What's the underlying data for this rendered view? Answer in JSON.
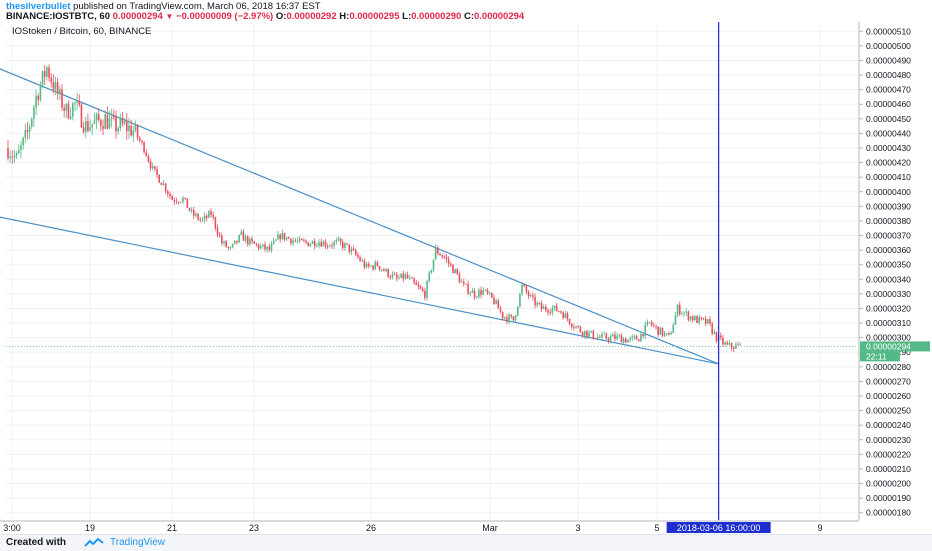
{
  "header": {
    "author": "thesilverbullet",
    "published_text": "published on TradingView.com, March 06, 2018 16:37 EST",
    "symbol": "BINANCE:IOSTBTC, 60",
    "last": "0.00000294",
    "change_icon": "triangle-down-icon",
    "change": "−0.00000009 (−2.97%)",
    "o_label": "O:",
    "o": "0.00000292",
    "h_label": "H:",
    "h": "0.00000295",
    "l_label": "L:",
    "l": "0.00000290",
    "c_label": "C:",
    "c": "0.00000294"
  },
  "legend": "IOStoken / Bitcoin, 60, BINANCE",
  "footer": {
    "created_with": "Created with",
    "brand": "TradingView",
    "logo_icon": "tradingview-logo-icon"
  },
  "colors": {
    "up": "#53b987",
    "down": "#eb4d5c",
    "trendline": "#4a90c8",
    "vline": "#2327d2",
    "price_badge": "#53b987",
    "date_badge": "#1f2ecf"
  },
  "chart_data": {
    "type": "candlestick",
    "ylim": [
      1.75e-06,
      5.15e-06
    ],
    "yticks": [
      "0.00000510",
      "0.00000500",
      "0.00000490",
      "0.00000480",
      "0.00000470",
      "0.00000460",
      "0.00000450",
      "0.00000440",
      "0.00000430",
      "0.00000420",
      "0.00000410",
      "0.00000400",
      "0.00000390",
      "0.00000380",
      "0.00000370",
      "0.00000360",
      "0.00000350",
      "0.00000340",
      "0.00000330",
      "0.00000320",
      "0.00000310",
      "0.00000300",
      "0.00000290",
      "0.00000280",
      "0.00000270",
      "0.00000260",
      "0.00000250",
      "0.00000240",
      "0.00000230",
      "0.00000220",
      "0.00000210",
      "0.00000200",
      "0.00000190",
      "0.00000180"
    ],
    "xticks": [
      "3:00",
      "19",
      "21",
      "23",
      "26",
      "Mar",
      "3",
      "5",
      "9"
    ],
    "last_price_label": "0.00000294",
    "countdown_label": "22:11",
    "crosshair_date": "2018-03-06 16:00:00",
    "close_path": [
      [
        0,
        4.3
      ],
      [
        4,
        4.22
      ],
      [
        9,
        4.4
      ],
      [
        13,
        4.65
      ],
      [
        18,
        4.85
      ],
      [
        22,
        4.7
      ],
      [
        27,
        4.55
      ],
      [
        31,
        4.6
      ],
      [
        36,
        4.45
      ],
      [
        40,
        4.47
      ],
      [
        45,
        4.5
      ],
      [
        49,
        4.45
      ],
      [
        54,
        4.45
      ],
      [
        58,
        4.42
      ],
      [
        63,
        4.3
      ],
      [
        67,
        4.15
      ],
      [
        72,
        4.05
      ],
      [
        76,
        3.95
      ],
      [
        81,
        3.95
      ],
      [
        85,
        3.85
      ],
      [
        90,
        3.8
      ],
      [
        94,
        3.85
      ],
      [
        99,
        3.65
      ],
      [
        103,
        3.6
      ],
      [
        108,
        3.7
      ],
      [
        112,
        3.65
      ],
      [
        117,
        3.62
      ],
      [
        121,
        3.6
      ],
      [
        126,
        3.7
      ],
      [
        130,
        3.68
      ],
      [
        135,
        3.65
      ],
      [
        139,
        3.65
      ],
      [
        144,
        3.66
      ],
      [
        148,
        3.64
      ],
      [
        153,
        3.65
      ],
      [
        157,
        3.62
      ],
      [
        162,
        3.55
      ],
      [
        166,
        3.48
      ],
      [
        171,
        3.5
      ],
      [
        175,
        3.45
      ],
      [
        180,
        3.4
      ],
      [
        184,
        3.42
      ],
      [
        189,
        3.35
      ],
      [
        193,
        3.3
      ],
      [
        198,
        3.6
      ],
      [
        202,
        3.55
      ],
      [
        207,
        3.45
      ],
      [
        211,
        3.35
      ],
      [
        216,
        3.3
      ],
      [
        220,
        3.32
      ],
      [
        225,
        3.25
      ],
      [
        229,
        3.15
      ],
      [
        234,
        3.12
      ],
      [
        238,
        3.35
      ],
      [
        243,
        3.25
      ],
      [
        247,
        3.2
      ],
      [
        252,
        3.2
      ],
      [
        256,
        3.18
      ],
      [
        261,
        3.1
      ],
      [
        265,
        3.05
      ],
      [
        270,
        3.02
      ],
      [
        274,
        3.0
      ],
      [
        279,
        3.0
      ],
      [
        283,
        3.0
      ],
      [
        288,
        2.98
      ],
      [
        292,
        3.0
      ],
      [
        297,
        3.1
      ],
      [
        301,
        3.05
      ],
      [
        306,
        3.0
      ],
      [
        310,
        3.2
      ],
      [
        315,
        3.15
      ],
      [
        319,
        3.12
      ],
      [
        324,
        3.1
      ],
      [
        328,
        3.0
      ],
      [
        333,
        2.94
      ]
    ],
    "trendlines": [
      {
        "from": [
          -5,
          4.85
        ],
        "to": [
          329,
          2.82
        ]
      },
      {
        "from": [
          -5,
          3.83
        ],
        "to": [
          329,
          2.82
        ]
      }
    ],
    "vertical_line_at": 329
  }
}
